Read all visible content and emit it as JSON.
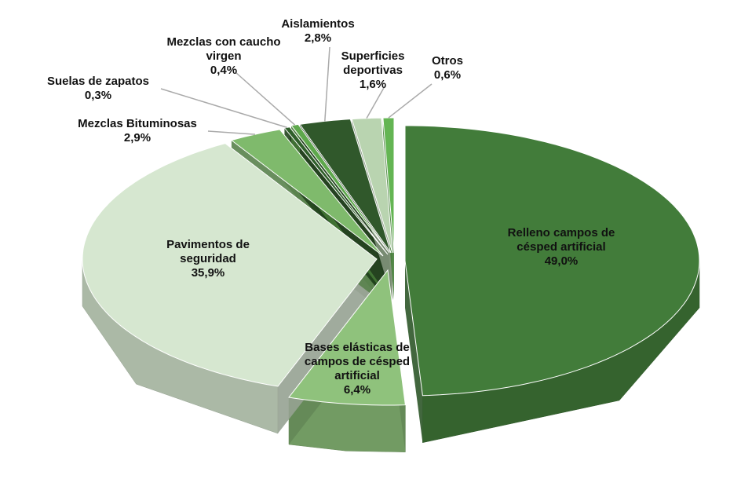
{
  "chart_data": {
    "type": "pie3d",
    "categories": [
      "Relleno campos de césped artificial",
      "Bases elásticas de campos de césped artificial",
      "Pavimentos de seguridad",
      "Mezclas Bituminosas",
      "Suelas de zapatos",
      "Mezclas con caucho virgen",
      "Aislamientos",
      "Superficies deportivas",
      "Otros"
    ],
    "values": [
      49.0,
      6.4,
      35.9,
      2.9,
      0.3,
      0.4,
      2.8,
      1.6,
      0.6
    ],
    "value_labels": [
      "49,0%",
      "6,4%",
      "35,9%",
      "2,9%",
      "0,3%",
      "0,4%",
      "2,8%",
      "1,6%",
      "0,6%"
    ],
    "colors": [
      "#427c3a",
      "#8fc27c",
      "#d6e7d0",
      "#7fba6c",
      "#2f5f2a",
      "#5ea84c",
      "#30582b",
      "#b9d4b0",
      "#64b553"
    ]
  }
}
